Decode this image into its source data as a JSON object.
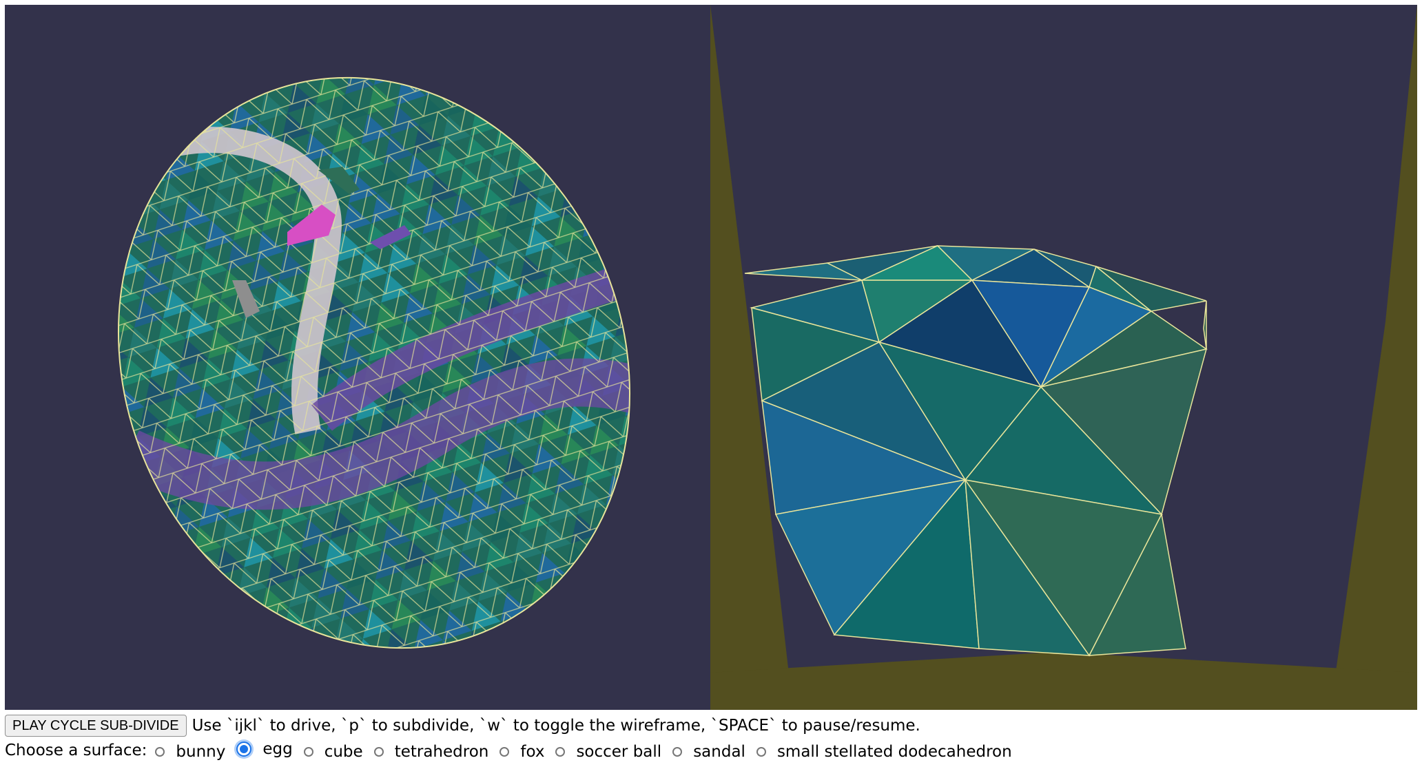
{
  "colors": {
    "background": "#33324b",
    "wireframe": "#e9e59a",
    "road_light": "#cdc4cc",
    "road_purple": "#6a4aa0",
    "car_magenta": "#d74fc4",
    "car_purple": "#6e4fae",
    "car_green": "#2e6e57",
    "car_gray": "#8e8e8e",
    "ground_olive": "#534f1f",
    "radio_accent": "#1a73e8"
  },
  "viewports": {
    "left": {
      "label": "overview-egg-view",
      "surface": "egg"
    },
    "right": {
      "label": "driver-close-up-view",
      "surface": "egg"
    }
  },
  "controls": {
    "play_button_label": "PLAY CYCLE SUB-DIVIDE",
    "instructions": "Use `ijkl` to drive, `p` to subdivide, `w` to toggle the wireframe, `SPACE` to pause/resume.",
    "surface_label": "Choose a surface:",
    "surfaces": [
      {
        "label": "bunny",
        "checked": false
      },
      {
        "label": "egg",
        "checked": true
      },
      {
        "label": "cube",
        "checked": false
      },
      {
        "label": "tetrahedron",
        "checked": false
      },
      {
        "label": "fox",
        "checked": false
      },
      {
        "label": "soccer ball",
        "checked": false
      },
      {
        "label": "sandal",
        "checked": false
      },
      {
        "label": "small stellated dodecahedron",
        "checked": false
      }
    ]
  }
}
